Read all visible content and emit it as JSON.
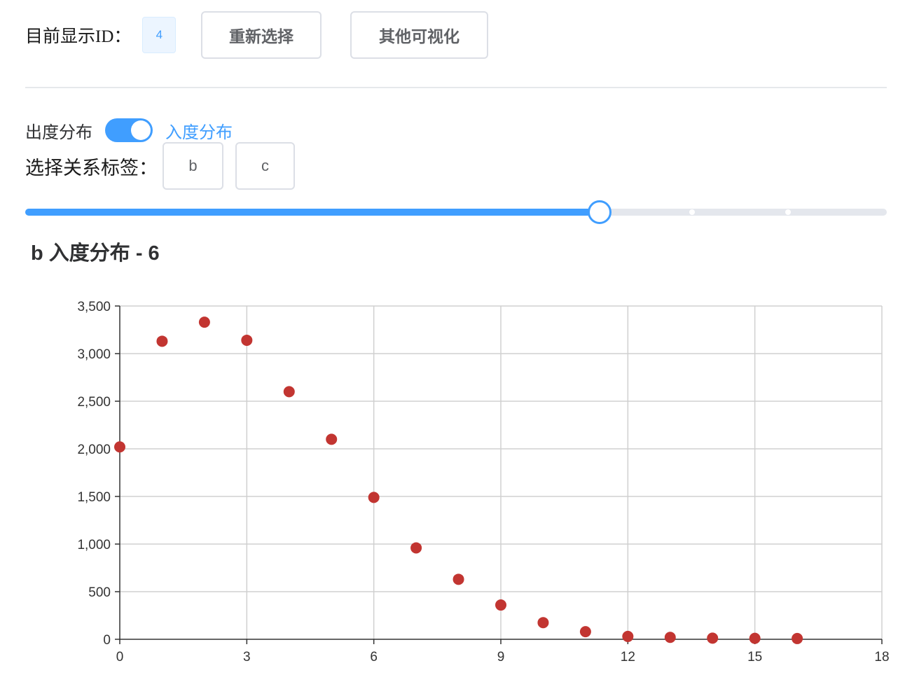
{
  "header": {
    "id_label": "目前显示ID：",
    "id_value": "4",
    "reselect_label": "重新选择",
    "other_vis_label": "其他可视化"
  },
  "toggle": {
    "left_label": "出度分布",
    "right_label": "入度分布",
    "state": "on"
  },
  "relation": {
    "label": "选择关系标签：",
    "tags": [
      "b",
      "c"
    ]
  },
  "slider": {
    "value_fraction": 0.667,
    "stops": 3
  },
  "colors": {
    "accent": "#409eff",
    "point": "#c23531"
  },
  "chart_data": {
    "type": "scatter",
    "title": "b 入度分布 - 6",
    "xlabel": "",
    "ylabel": "",
    "xlim": [
      0,
      18
    ],
    "ylim": [
      0,
      3500
    ],
    "xticks": [
      0,
      3,
      6,
      9,
      12,
      15,
      18
    ],
    "yticks": [
      0,
      500,
      1000,
      1500,
      2000,
      2500,
      3000,
      3500
    ],
    "ytick_labels": [
      "0",
      "500",
      "1,000",
      "1,500",
      "2,000",
      "2,500",
      "3,000",
      "3,500"
    ],
    "grid": true,
    "x": [
      0,
      1,
      2,
      3,
      4,
      5,
      6,
      7,
      8,
      9,
      10,
      11,
      12,
      13,
      14,
      15,
      16
    ],
    "y": [
      2020,
      3130,
      3330,
      3140,
      2600,
      2100,
      1490,
      960,
      630,
      360,
      175,
      80,
      30,
      20,
      12,
      10,
      8
    ]
  }
}
